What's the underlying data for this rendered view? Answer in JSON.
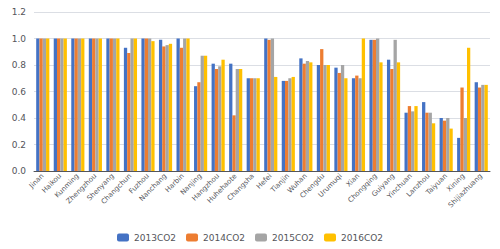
{
  "chart_data": {
    "type": "bar",
    "categories": [
      "Jinan",
      "Haikou",
      "Kunming",
      "Zhengzhou",
      "Shenyang",
      "Changchun",
      "Fuzhou",
      "Nanchang",
      "Harbin",
      "Nanjing",
      "Hangzhou",
      "Huhehaote",
      "Changsha",
      "Hefei",
      "Tianjin",
      "Wuhan",
      "Chengdu",
      "Urumuqi",
      "Xian",
      "Chongqing",
      "Guiyang",
      "Yinchuan",
      "Lanzhou",
      "Taiyuan",
      "Xining",
      "Shijiazhuang"
    ],
    "series": [
      {
        "name": "2013CO2",
        "color": "#4472c4",
        "values": [
          1.0,
          1.0,
          1.0,
          1.0,
          1.0,
          0.93,
          1.0,
          0.99,
          1.0,
          0.64,
          0.81,
          0.81,
          0.7,
          1.0,
          0.68,
          0.85,
          0.8,
          0.78,
          0.7,
          0.99,
          0.84,
          0.44,
          0.52,
          0.4,
          0.25,
          0.67
        ]
      },
      {
        "name": "2014CO2",
        "color": "#ed7d31",
        "values": [
          1.0,
          1.0,
          1.0,
          1.0,
          1.0,
          0.89,
          1.0,
          0.94,
          0.93,
          0.67,
          0.77,
          0.42,
          0.7,
          0.99,
          0.68,
          0.81,
          0.92,
          0.74,
          0.72,
          0.99,
          0.77,
          0.49,
          0.44,
          0.38,
          0.63,
          0.63
        ]
      },
      {
        "name": "2015CO2",
        "color": "#a5a5a5",
        "values": [
          1.0,
          1.0,
          1.0,
          1.0,
          1.0,
          1.0,
          1.0,
          0.95,
          1.0,
          0.87,
          0.79,
          0.77,
          0.7,
          1.0,
          0.7,
          0.83,
          0.8,
          0.8,
          0.7,
          1.0,
          0.99,
          0.45,
          0.44,
          0.4,
          0.4,
          0.65
        ]
      },
      {
        "name": "2016CO2",
        "color": "#ffc000",
        "values": [
          1.0,
          1.0,
          1.0,
          1.0,
          1.0,
          1.0,
          0.98,
          0.96,
          1.0,
          0.87,
          0.84,
          0.77,
          0.7,
          0.71,
          0.71,
          0.82,
          0.8,
          0.7,
          1.0,
          0.82,
          0.82,
          0.49,
          0.36,
          0.32,
          0.93,
          0.65
        ]
      }
    ],
    "ylim": [
      0,
      1.2
    ],
    "yticks": [
      {
        "value": 0,
        "label": "0.0"
      },
      0.2,
      0.4,
      0.6,
      0.8,
      {
        "value": 1.0,
        "label": "1.0"
      },
      1.2
    ],
    "grid": true,
    "legend": "bottom"
  }
}
